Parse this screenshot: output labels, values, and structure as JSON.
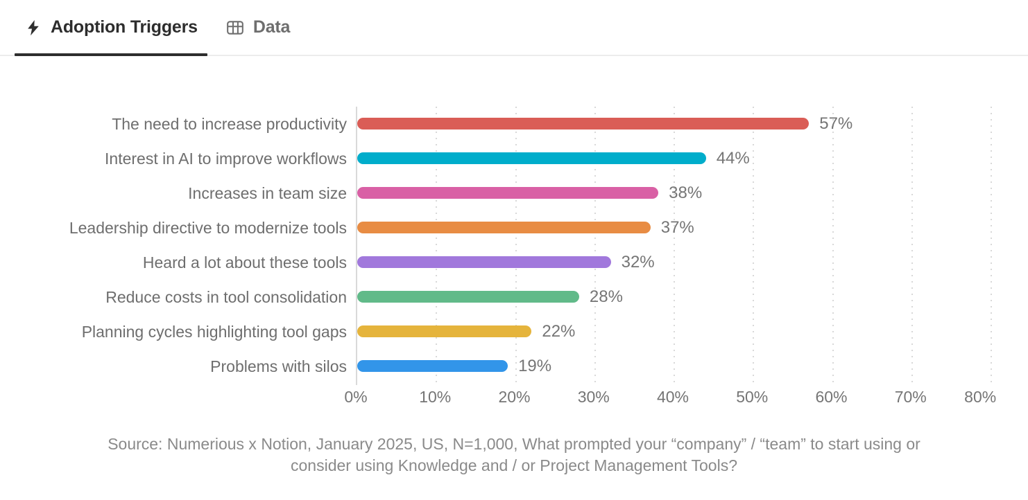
{
  "tabs": [
    {
      "label": "Adoption Triggers",
      "icon": "lightning-bolt-icon",
      "active": true
    },
    {
      "label": "Data",
      "icon": "table-icon",
      "active": false
    }
  ],
  "colors": {
    "active_tab_text": "#2d2d2d",
    "active_tab_underline": "#2e2e2e",
    "inactive_tab_text": "#6e6e6e",
    "category_label_text": "#6e6e6e",
    "value_label_text": "#757575",
    "tick_label_text": "#757575",
    "gridline": "#d8d8d8",
    "axis_line": "#d9d9d9",
    "source_text": "#8a8a8a"
  },
  "chart_data": {
    "type": "bar",
    "orientation": "horizontal",
    "title": "Adoption Triggers",
    "categories": [
      "The need to increase productivity",
      "Interest in AI to improve workflows",
      "Increases in team size",
      "Leadership directive to modernize tools",
      "Heard a lot about these tools",
      "Reduce costs in tool consolidation",
      "Planning cycles highlighting tool gaps",
      "Problems with silos"
    ],
    "values": [
      57,
      44,
      38,
      37,
      32,
      28,
      22,
      19
    ],
    "value_labels": [
      "57%",
      "44%",
      "38%",
      "37%",
      "32%",
      "28%",
      "22%",
      "19%"
    ],
    "bar_colors": [
      "#da5d56",
      "#00adcb",
      "#d960a5",
      "#e88c43",
      "#a178dc",
      "#61ba89",
      "#e5b43c",
      "#3295e9"
    ],
    "xlabel": "",
    "ylabel": "",
    "xlim": [
      0,
      80
    ],
    "x_ticks": [
      "0%",
      "10%",
      "20%",
      "30%",
      "40%",
      "50%",
      "60%",
      "70%",
      "80%"
    ],
    "grid": "dotted-vertical",
    "legend": "none",
    "source_lines": [
      "Source: Numerious x Notion, January 2025, US, N=1,000, What prompted your “company” / “team” to start using or",
      "consider using Knowledge and / or Project Management Tools?"
    ]
  }
}
